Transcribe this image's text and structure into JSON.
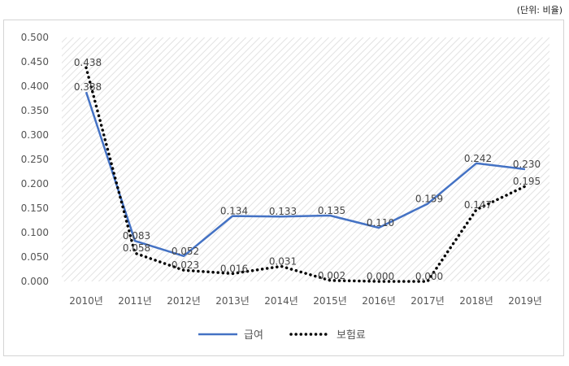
{
  "unit_note": "(단위: 비율)",
  "chart_data": {
    "type": "line",
    "categories": [
      "2010년",
      "2011년",
      "2012년",
      "2013년",
      "2014년",
      "2015년",
      "2016년",
      "2017년",
      "2018년",
      "2019년"
    ],
    "series": [
      {
        "name": "급여",
        "color": "#4472C4",
        "style": "solid",
        "values": [
          0.388,
          0.083,
          0.052,
          0.134,
          0.133,
          0.135,
          0.11,
          0.159,
          0.242,
          0.23
        ]
      },
      {
        "name": "보험료",
        "color": "#000000",
        "style": "dotted",
        "values": [
          0.438,
          0.058,
          0.023,
          0.016,
          0.031,
          0.002,
          0.0,
          0.0,
          0.147,
          0.195
        ]
      }
    ],
    "data_labels": [
      [
        "0.388",
        "0.083",
        "0.052",
        "0.134",
        "0.133",
        "0.135",
        "0.110",
        "0.159",
        "0.242",
        "0.230"
      ],
      [
        "0.438",
        "0.058",
        "0.023",
        "0.016",
        "0.031",
        "0.002",
        "0.000",
        "0.000",
        "0.147",
        "0.195"
      ]
    ],
    "ylim": [
      0,
      0.5
    ],
    "yticks": [
      "0.000",
      "0.050",
      "0.100",
      "0.150",
      "0.200",
      "0.250",
      "0.300",
      "0.350",
      "0.400",
      "0.450",
      "0.500"
    ],
    "grid": false,
    "legend": "bottom-center"
  }
}
